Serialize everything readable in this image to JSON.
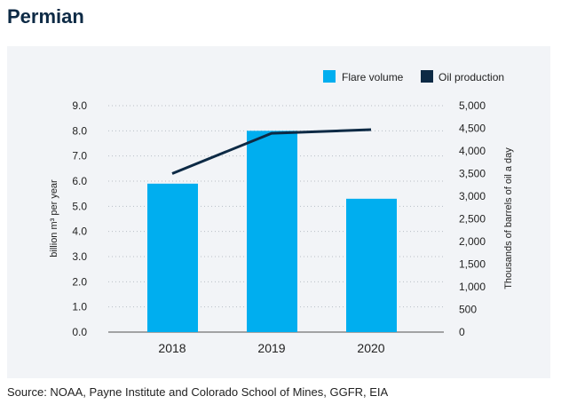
{
  "title": "Permian",
  "source": "Source: NOAA, Payne Institute and Colorado School of Mines, GGFR, EIA",
  "chart_data": {
    "type": "bar",
    "categories": [
      "2018",
      "2019",
      "2020"
    ],
    "series": [
      {
        "name": "Flare volume",
        "type": "bar",
        "axis": "left",
        "color": "#00aeef",
        "values": [
          5.9,
          8.0,
          5.3
        ]
      },
      {
        "name": "Oil production",
        "type": "line",
        "axis": "right",
        "color": "#0d2a45",
        "values": [
          3500,
          4390,
          4470
        ]
      }
    ],
    "ylabel": "billion m³ per year",
    "ylabel_right": "Thousands of barrels of oil a day",
    "ylim": [
      0,
      9
    ],
    "ylim_right": [
      0,
      5000
    ],
    "yticks": [
      "0.0",
      "1.0",
      "2.0",
      "3.0",
      "4.0",
      "5.0",
      "6.0",
      "7.0",
      "8.0",
      "9.0"
    ],
    "yticks_right": [
      "0",
      "500",
      "1,000",
      "1,500",
      "2,000",
      "2,500",
      "3,000",
      "3,500",
      "4,000",
      "4,500",
      "5,000"
    ],
    "grid": true,
    "legend": "top-right"
  }
}
